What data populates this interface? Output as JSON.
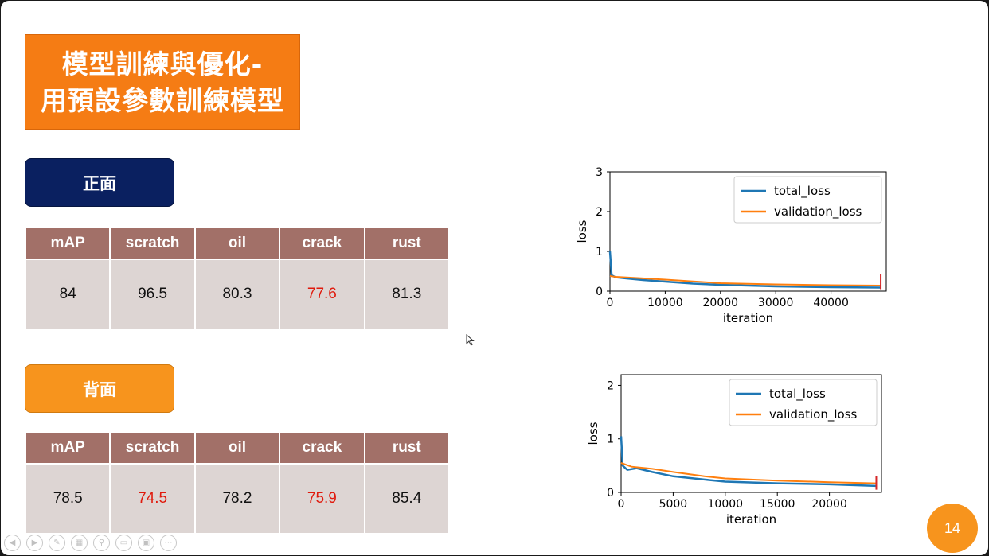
{
  "slide": {
    "title_line1": "模型訓練與優化-",
    "title_line2": "用預設參數訓練模型",
    "page_number": "14"
  },
  "colors": {
    "title_bg": "#f57c14",
    "front_button": "#0a2060",
    "back_button": "#f7941d",
    "table_header": "#a27068",
    "table_cell": "#ddd5d3",
    "highlight_text": "#e0190c",
    "total_loss": "#1f77b4",
    "validation_loss": "#ff7f0e"
  },
  "front": {
    "label": "正面",
    "headers": [
      "mAP",
      "scratch",
      "oil",
      "crack",
      "rust"
    ],
    "values": [
      "84",
      "96.5",
      "80.3",
      "77.6",
      "81.3"
    ],
    "highlighted": [
      false,
      false,
      false,
      true,
      false
    ]
  },
  "back": {
    "label": "背面",
    "headers": [
      "mAP",
      "scratch",
      "oil",
      "crack",
      "rust"
    ],
    "values": [
      "78.5",
      "74.5",
      "78.2",
      "75.9",
      "85.4"
    ],
    "highlighted": [
      false,
      true,
      false,
      true,
      false
    ]
  },
  "toolbar": {
    "icons": [
      "prev-icon",
      "next-icon",
      "pen-icon",
      "slides-icon",
      "zoom-icon",
      "subtitle-icon",
      "video-icon",
      "more-icon"
    ]
  },
  "chart_data": [
    {
      "type": "line",
      "xlabel": "iteration",
      "ylabel": "loss",
      "xlim": [
        0,
        50000
      ],
      "ylim": [
        0,
        3
      ],
      "xticks": [
        0,
        10000,
        20000,
        30000,
        40000
      ],
      "yticks": [
        0,
        1,
        2,
        3
      ],
      "legend": "top-right",
      "series": [
        {
          "name": "total_loss",
          "x": [
            0,
            300,
            1000,
            3000,
            6000,
            10000,
            15000,
            20000,
            25000,
            30000,
            40000,
            49000
          ],
          "values": [
            1.0,
            0.4,
            0.35,
            0.32,
            0.28,
            0.24,
            0.19,
            0.16,
            0.14,
            0.12,
            0.1,
            0.09
          ]
        },
        {
          "name": "validation_loss",
          "x": [
            0,
            1000,
            5000,
            10000,
            20000,
            30000,
            40000,
            49000
          ],
          "values": [
            0.38,
            0.36,
            0.33,
            0.29,
            0.2,
            0.17,
            0.15,
            0.14
          ]
        }
      ]
    },
    {
      "type": "line",
      "xlabel": "iteration",
      "ylabel": "loss",
      "xlim": [
        0,
        25000
      ],
      "ylim": [
        0,
        2.2
      ],
      "xticks": [
        0,
        5000,
        10000,
        15000,
        20000
      ],
      "yticks": [
        0,
        1,
        2
      ],
      "legend": "top-right",
      "series": [
        {
          "name": "total_loss",
          "x": [
            0,
            150,
            600,
            1500,
            3000,
            5000,
            8000,
            10000,
            15000,
            20000,
            24500
          ],
          "values": [
            1.05,
            0.5,
            0.42,
            0.45,
            0.38,
            0.3,
            0.24,
            0.2,
            0.17,
            0.15,
            0.12
          ]
        },
        {
          "name": "validation_loss",
          "x": [
            0,
            1000,
            3000,
            5000,
            8000,
            10000,
            15000,
            20000,
            24500
          ],
          "values": [
            0.55,
            0.48,
            0.44,
            0.38,
            0.3,
            0.26,
            0.22,
            0.19,
            0.17
          ]
        }
      ]
    }
  ]
}
